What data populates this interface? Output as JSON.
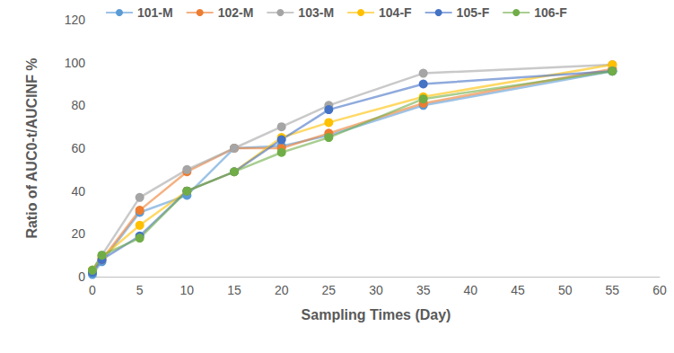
{
  "chart_data": {
    "type": "line",
    "x_label": "Sampling Times (Day)",
    "y_label": "Ratio of AUC0-t/AUCINF %",
    "x": [
      0,
      1,
      5,
      10,
      15,
      20,
      25,
      35,
      55
    ],
    "series": [
      {
        "name": "101-M",
        "color": "#5b9bd5",
        "values": [
          1,
          7,
          30,
          38,
          60,
          61,
          66,
          80,
          96
        ]
      },
      {
        "name": "102-M",
        "color": "#ed7d31",
        "values": [
          3,
          8,
          31,
          49,
          60,
          60,
          67,
          81,
          97
        ]
      },
      {
        "name": "103-M",
        "color": "#a5a5a5",
        "values": [
          3,
          10,
          37,
          50,
          60,
          70,
          80,
          95,
          99
        ]
      },
      {
        "name": "104-F",
        "color": "#ffc000",
        "values": [
          3,
          9,
          24,
          40,
          49,
          65,
          72,
          84,
          99
        ]
      },
      {
        "name": "105-F",
        "color": "#4472c4",
        "values": [
          2,
          8,
          19,
          40,
          49,
          64,
          78,
          90,
          96
        ]
      },
      {
        "name": "106-F",
        "color": "#70ad47",
        "values": [
          3,
          10,
          18,
          40,
          49,
          58,
          65,
          83,
          96
        ]
      }
    ],
    "xlim": [
      0,
      60
    ],
    "xticks": [
      0,
      5,
      10,
      15,
      20,
      25,
      30,
      35,
      40,
      45,
      50,
      55,
      60
    ],
    "ylim": [
      0,
      120
    ],
    "yticks": [
      0,
      20,
      40,
      60,
      80,
      100,
      120
    ],
    "grid": false,
    "legend": "top",
    "marker": "circle"
  }
}
